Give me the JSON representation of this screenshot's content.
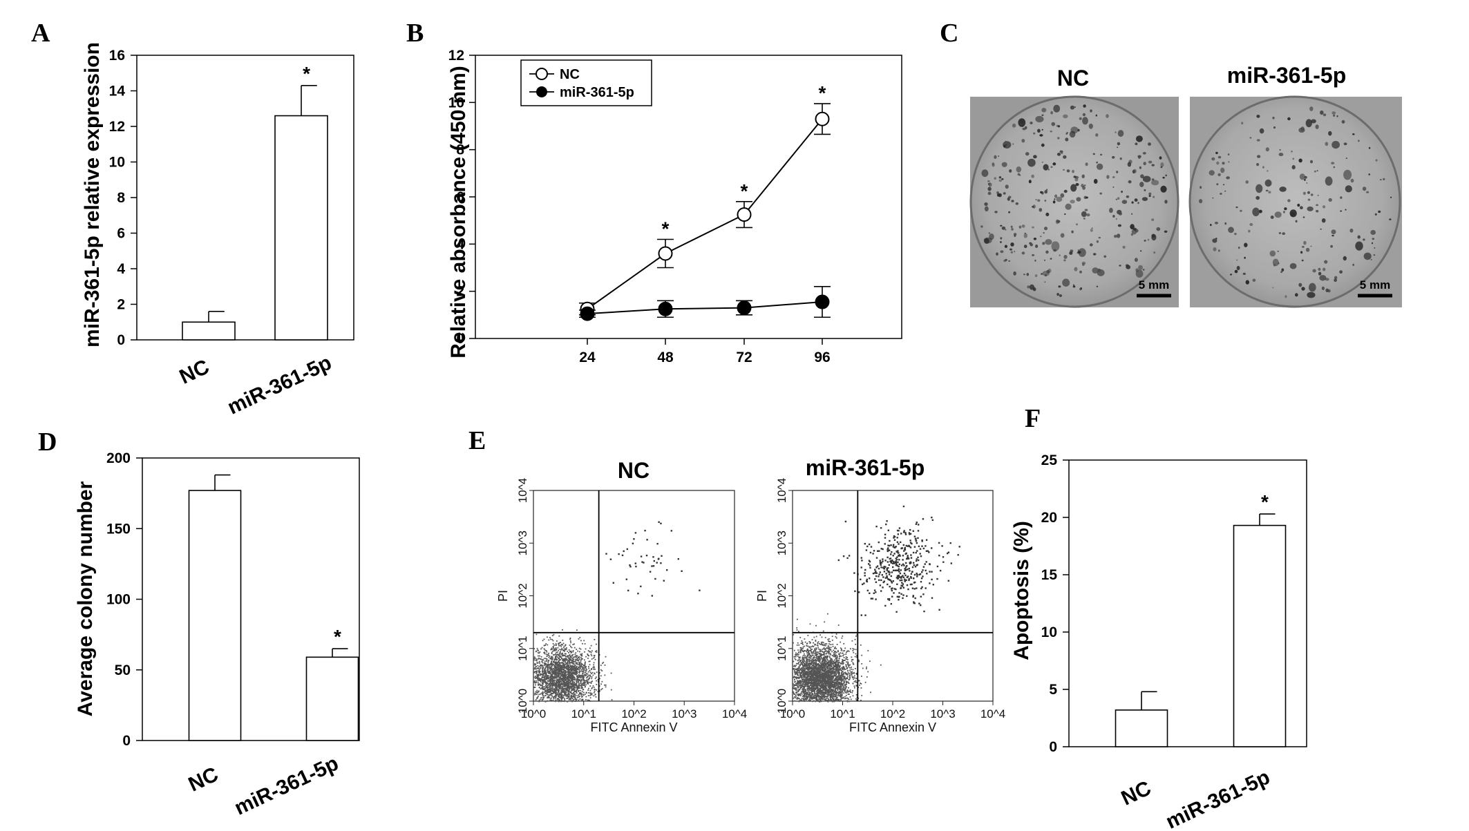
{
  "figure": {
    "labels": [
      "A",
      "B",
      "C",
      "D",
      "E",
      "F"
    ]
  },
  "chart_data": [
    {
      "panel": "A",
      "type": "bar",
      "categories": [
        "NC",
        "miR-361-5p"
      ],
      "values": [
        1.0,
        12.6
      ],
      "errors": [
        0.6,
        1.7
      ],
      "significance": [
        "",
        "*"
      ],
      "ylabel": "miR-361-5p relative expression",
      "ylim": [
        0,
        16
      ],
      "yticks": [
        0,
        2,
        4,
        6,
        8,
        10,
        12,
        14,
        16
      ]
    },
    {
      "panel": "B",
      "type": "line",
      "x": [
        24,
        48,
        72,
        96
      ],
      "series": [
        {
          "name": "NC",
          "marker": "open-circle",
          "values": [
            1.25,
            3.6,
            5.25,
            9.3
          ],
          "errors": [
            0.25,
            0.6,
            0.55,
            0.65
          ],
          "significance": [
            "",
            "*",
            "*",
            "*"
          ]
        },
        {
          "name": "miR-361-5p",
          "marker": "filled-circle",
          "values": [
            1.05,
            1.25,
            1.3,
            1.55
          ],
          "errors": [
            0.15,
            0.35,
            0.3,
            0.65
          ]
        }
      ],
      "ylabel": "Relative absorbance (450 nm)",
      "ylim": [
        0,
        12
      ],
      "yticks": [
        0,
        2,
        4,
        6,
        8,
        10,
        12
      ],
      "xticks": [
        24,
        48,
        72,
        96
      ],
      "legend": "top-left"
    },
    {
      "panel": "D",
      "type": "bar",
      "categories": [
        "NC",
        "miR-361-5p"
      ],
      "values": [
        177,
        59
      ],
      "errors": [
        11,
        6
      ],
      "significance": [
        "",
        "*"
      ],
      "ylabel": "Average colony number",
      "ylim": [
        0,
        200
      ],
      "yticks": [
        0,
        50,
        100,
        150,
        200
      ]
    },
    {
      "panel": "F",
      "type": "bar",
      "categories": [
        "NC",
        "miR-361-5p"
      ],
      "values": [
        3.2,
        19.3
      ],
      "errors": [
        1.6,
        1.0
      ],
      "significance": [
        "",
        "*"
      ],
      "ylabel": "Apoptosis (%)",
      "ylim": [
        0,
        25
      ],
      "yticks": [
        0,
        5,
        10,
        15,
        20,
        25
      ]
    },
    {
      "panel": "E",
      "type": "scatter",
      "plots": [
        {
          "title": "NC",
          "density": "low"
        },
        {
          "title": "miR-361-5p",
          "density": "high"
        }
      ],
      "xlabel": "FITC Annexin V",
      "ylabel": "PI",
      "scale": "log",
      "ticks": [
        "10^0",
        "10^1",
        "10^2",
        "10^3",
        "10^4"
      ],
      "gate": {
        "x": 20,
        "y": 20
      }
    }
  ],
  "photos": {
    "panel": "C",
    "items": [
      {
        "title": "NC",
        "scale_label": "5 mm",
        "colony_density": "high"
      },
      {
        "title": "miR-361-5p",
        "scale_label": "5 mm",
        "colony_density": "low"
      }
    ]
  }
}
